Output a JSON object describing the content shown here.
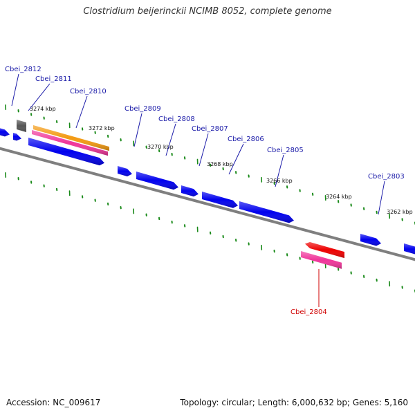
{
  "title": "Clostridium beijerinckii NCIMB 8052, complete genome",
  "footer": {
    "accession": "Accession: NC_009617",
    "summary": "Topology: circular; Length: 6,000,632 bp; Genes: 5,160"
  },
  "colors": {
    "backbone": "#7f7f7f",
    "tick": "#1a8a1a",
    "gene_blue": "#0000ee",
    "gene_grey": "#555555",
    "gene_orange": "#f39a12",
    "gene_pink": "#f0369a",
    "gene_red": "#ee0000",
    "label_blue": "#1a1aa8",
    "label_red": "#d00000"
  },
  "scale_labels": [
    "3274 kbp",
    "3272 kbp",
    "3270 kbp",
    "3268 kbp",
    "3266 kbp",
    "3264 kbp",
    "3262 kbp"
  ],
  "gene_labels": [
    {
      "text": "Cbei_2812",
      "color": "label_blue"
    },
    {
      "text": "Cbei_2811",
      "color": "label_blue"
    },
    {
      "text": "Cbei_2810",
      "color": "label_blue"
    },
    {
      "text": "Cbei_2809",
      "color": "label_blue"
    },
    {
      "text": "Cbei_2808",
      "color": "label_blue"
    },
    {
      "text": "Cbei_2807",
      "color": "label_blue"
    },
    {
      "text": "Cbei_2806",
      "color": "label_blue"
    },
    {
      "text": "Cbei_2805",
      "color": "label_blue"
    },
    {
      "text": "Cbei_2803",
      "color": "label_blue"
    },
    {
      "text": "Cbei_2804",
      "color": "label_red"
    }
  ]
}
